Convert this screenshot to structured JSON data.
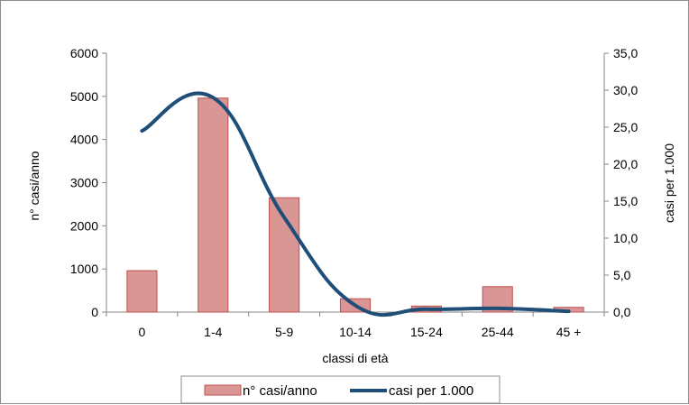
{
  "chart_data": {
    "type": "bar",
    "title": "",
    "categories": [
      "0",
      "1-4",
      "5-9",
      "10-14",
      "15-24",
      "25-44",
      "45 +"
    ],
    "xlabel": "classi di età",
    "ylabel_left": "n° casi/anno",
    "ylabel_right": "casi per 1.000",
    "ylim_left": [
      0,
      6000
    ],
    "ylim_right": [
      0,
      35
    ],
    "yticks_left": [
      "0",
      "1000",
      "2000",
      "3000",
      "4000",
      "5000",
      "6000"
    ],
    "yticks_right": [
      "0,0",
      "5,0",
      "10,0",
      "15,0",
      "20,0",
      "25,0",
      "30,0",
      "35,0"
    ],
    "grid": false,
    "legend_position": "bottom",
    "series": [
      {
        "name": "n° casi/anno",
        "type": "bar",
        "axis": "left",
        "color": "#d99694",
        "edge_color": "#c0504d",
        "values": [
          960,
          4960,
          2650,
          310,
          140,
          590,
          110
        ]
      },
      {
        "name": "casi per 1.000",
        "type": "line",
        "axis": "right",
        "smooth": true,
        "color": "#1f4e79",
        "values": [
          24.5,
          29.0,
          12.8,
          0.9,
          0.4,
          0.5,
          0.1
        ]
      }
    ]
  }
}
